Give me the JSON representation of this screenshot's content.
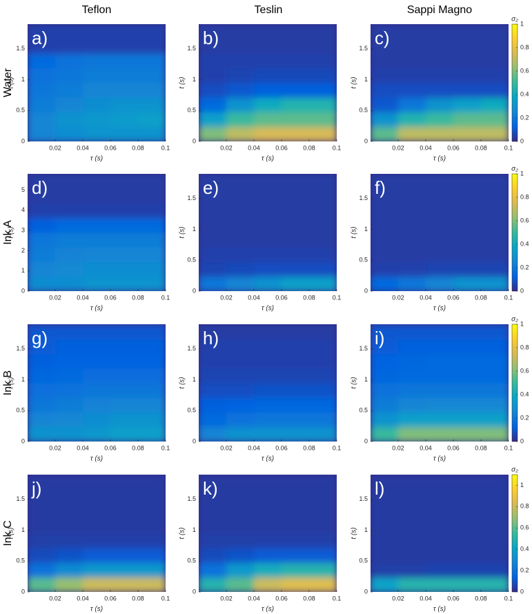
{
  "column_headers": [
    "Teflon",
    "Teslin",
    "Sappi Magno"
  ],
  "row_labels": [
    "Water",
    "Ink A",
    "Ink B",
    "Ink C"
  ],
  "chart_data": [
    {
      "type": "heatmap",
      "label": "a)",
      "xlabel": "τ (s)",
      "ylabel": "t (s)",
      "xlim": [
        0,
        0.1
      ],
      "ylim": [
        0,
        1.9
      ],
      "xticks": [
        0.02,
        0.04,
        0.06,
        0.08,
        0.1
      ],
      "yticks": [
        0,
        0.5,
        1,
        1.5
      ],
      "clim": [
        0,
        1
      ],
      "colormap": "parula",
      "values": [
        [
          0.25,
          0.28,
          0.3,
          0.3,
          0.3
        ],
        [
          0.25,
          0.3,
          0.32,
          0.33,
          0.35
        ],
        [
          0.22,
          0.25,
          0.28,
          0.3,
          0.3
        ],
        [
          0.2,
          0.22,
          0.25,
          0.25,
          0.25
        ],
        [
          0.18,
          0.2,
          0.22,
          0.22,
          0.22
        ],
        [
          0.15,
          0.18,
          0.2,
          0.2,
          0.2
        ],
        [
          0.05,
          0.05,
          0.05,
          0.05,
          0.05
        ],
        [
          0.05,
          0.05,
          0.05,
          0.05,
          0.05
        ]
      ]
    },
    {
      "type": "heatmap",
      "label": "b)",
      "xlabel": "τ (s)",
      "ylabel": "t (s)",
      "xlim": [
        0,
        0.1
      ],
      "ylim": [
        0,
        1.9
      ],
      "xticks": [
        0.02,
        0.04,
        0.06,
        0.08,
        0.1
      ],
      "yticks": [
        0,
        0.5,
        1,
        1.5
      ],
      "clim": [
        0,
        1
      ],
      "colormap": "parula",
      "values": [
        [
          0.6,
          0.7,
          0.75,
          0.75,
          0.75
        ],
        [
          0.35,
          0.5,
          0.55,
          0.55,
          0.55
        ],
        [
          0.15,
          0.3,
          0.4,
          0.45,
          0.45
        ],
        [
          0.08,
          0.1,
          0.12,
          0.12,
          0.12
        ],
        [
          0.05,
          0.06,
          0.07,
          0.07,
          0.07
        ],
        [
          0.05,
          0.05,
          0.05,
          0.05,
          0.05
        ],
        [
          0.04,
          0.04,
          0.04,
          0.04,
          0.04
        ],
        [
          0.04,
          0.04,
          0.04,
          0.04,
          0.04
        ]
      ]
    },
    {
      "type": "heatmap",
      "label": "c)",
      "xlabel": "τ (s)",
      "ylabel": "t (s)",
      "xlim": [
        0,
        0.1
      ],
      "ylim": [
        0,
        1.9
      ],
      "xticks": [
        0.02,
        0.04,
        0.06,
        0.08,
        0.1
      ],
      "yticks": [
        0,
        0.5,
        1,
        1.5
      ],
      "clim": [
        0,
        1
      ],
      "colormap": "parula",
      "values": [
        [
          0.55,
          0.7,
          0.7,
          0.7,
          0.7
        ],
        [
          0.3,
          0.45,
          0.5,
          0.55,
          0.55
        ],
        [
          0.1,
          0.2,
          0.3,
          0.35,
          0.4
        ],
        [
          0.08,
          0.08,
          0.08,
          0.08,
          0.08
        ],
        [
          0.05,
          0.05,
          0.05,
          0.05,
          0.05
        ],
        [
          0.04,
          0.04,
          0.04,
          0.04,
          0.04
        ],
        [
          0.04,
          0.04,
          0.04,
          0.04,
          0.04
        ],
        [
          0.04,
          0.04,
          0.04,
          0.04,
          0.04
        ]
      ],
      "colorbar": {
        "label": "σ₂",
        "ticks": [
          0,
          0.2,
          0.4,
          0.6,
          0.8,
          1
        ]
      }
    },
    {
      "type": "heatmap",
      "label": "d)",
      "xlabel": "τ (s)",
      "ylabel": "t (s)",
      "xlim": [
        0,
        0.1
      ],
      "ylim": [
        0,
        5.8
      ],
      "xticks": [
        0.02,
        0.04,
        0.06,
        0.08,
        0.1
      ],
      "yticks": [
        0,
        1,
        2,
        3,
        4,
        5
      ],
      "clim": [
        0,
        1
      ],
      "colormap": "parula",
      "values": [
        [
          0.28,
          0.28,
          0.3,
          0.3,
          0.3
        ],
        [
          0.25,
          0.27,
          0.28,
          0.28,
          0.28
        ],
        [
          0.22,
          0.24,
          0.25,
          0.25,
          0.25
        ],
        [
          0.2,
          0.22,
          0.22,
          0.22,
          0.22
        ],
        [
          0.12,
          0.15,
          0.15,
          0.15,
          0.15
        ],
        [
          0.05,
          0.05,
          0.05,
          0.05,
          0.05
        ],
        [
          0.04,
          0.04,
          0.04,
          0.04,
          0.04
        ],
        [
          0.04,
          0.04,
          0.04,
          0.04,
          0.04
        ]
      ]
    },
    {
      "type": "heatmap",
      "label": "e)",
      "xlabel": "τ (s)",
      "ylabel": "t (s)",
      "xlim": [
        0,
        0.1
      ],
      "ylim": [
        0,
        1.9
      ],
      "xticks": [
        0.02,
        0.04,
        0.06,
        0.08,
        0.1
      ],
      "yticks": [
        0,
        0.5,
        1,
        1.5
      ],
      "clim": [
        0,
        1
      ],
      "colormap": "parula",
      "values": [
        [
          0.2,
          0.25,
          0.3,
          0.35,
          0.35
        ],
        [
          0.06,
          0.07,
          0.08,
          0.08,
          0.08
        ],
        [
          0.05,
          0.05,
          0.05,
          0.05,
          0.05
        ],
        [
          0.04,
          0.04,
          0.04,
          0.04,
          0.04
        ],
        [
          0.04,
          0.04,
          0.04,
          0.04,
          0.04
        ],
        [
          0.04,
          0.04,
          0.04,
          0.04,
          0.04
        ],
        [
          0.04,
          0.04,
          0.04,
          0.04,
          0.04
        ],
        [
          0.04,
          0.04,
          0.04,
          0.04,
          0.04
        ]
      ]
    },
    {
      "type": "heatmap",
      "label": "f)",
      "xlabel": "τ (s)",
      "ylabel": "t (s)",
      "xlim": [
        0,
        0.1
      ],
      "ylim": [
        0,
        1.9
      ],
      "xticks": [
        0.02,
        0.04,
        0.06,
        0.08,
        0.1
      ],
      "yticks": [
        0,
        0.5,
        1,
        1.5
      ],
      "clim": [
        0,
        1
      ],
      "colormap": "parula",
      "values": [
        [
          0.15,
          0.2,
          0.25,
          0.3,
          0.3
        ],
        [
          0.05,
          0.05,
          0.06,
          0.06,
          0.06
        ],
        [
          0.04,
          0.04,
          0.04,
          0.04,
          0.04
        ],
        [
          0.04,
          0.04,
          0.04,
          0.04,
          0.04
        ],
        [
          0.04,
          0.04,
          0.04,
          0.04,
          0.04
        ],
        [
          0.04,
          0.04,
          0.04,
          0.04,
          0.04
        ],
        [
          0.04,
          0.04,
          0.04,
          0.04,
          0.04
        ],
        [
          0.04,
          0.04,
          0.04,
          0.04,
          0.04
        ]
      ],
      "colorbar": {
        "label": "σ₂",
        "ticks": [
          0,
          0.2,
          0.4,
          0.6,
          0.8,
          1
        ]
      }
    },
    {
      "type": "heatmap",
      "label": "g)",
      "xlabel": "τ (s)",
      "ylabel": "t (s)",
      "xlim": [
        0,
        0.1
      ],
      "ylim": [
        0,
        1.9
      ],
      "xticks": [
        0.02,
        0.04,
        0.06,
        0.08,
        0.1
      ],
      "yticks": [
        0,
        0.5,
        1,
        1.5
      ],
      "clim": [
        0,
        1
      ],
      "colormap": "parula",
      "values": [
        [
          0.3,
          0.3,
          0.32,
          0.35,
          0.35
        ],
        [
          0.25,
          0.26,
          0.28,
          0.3,
          0.3
        ],
        [
          0.2,
          0.22,
          0.24,
          0.25,
          0.25
        ],
        [
          0.17,
          0.18,
          0.2,
          0.2,
          0.2
        ],
        [
          0.14,
          0.15,
          0.16,
          0.16,
          0.16
        ],
        [
          0.12,
          0.13,
          0.13,
          0.13,
          0.13
        ],
        [
          0.11,
          0.12,
          0.12,
          0.12,
          0.12
        ],
        [
          0.1,
          0.1,
          0.1,
          0.1,
          0.1
        ]
      ]
    },
    {
      "type": "heatmap",
      "label": "h)",
      "xlabel": "τ (s)",
      "ylabel": "t (s)",
      "xlim": [
        0,
        0.1
      ],
      "ylim": [
        0,
        1.9
      ],
      "xticks": [
        0.02,
        0.04,
        0.06,
        0.08,
        0.1
      ],
      "yticks": [
        0,
        0.5,
        1,
        1.5
      ],
      "clim": [
        0,
        1
      ],
      "colormap": "parula",
      "values": [
        [
          0.25,
          0.3,
          0.3,
          0.3,
          0.3
        ],
        [
          0.15,
          0.18,
          0.2,
          0.2,
          0.2
        ],
        [
          0.12,
          0.13,
          0.14,
          0.14,
          0.14
        ],
        [
          0.08,
          0.08,
          0.09,
          0.09,
          0.09
        ],
        [
          0.06,
          0.06,
          0.06,
          0.06,
          0.06
        ],
        [
          0.05,
          0.05,
          0.05,
          0.05,
          0.05
        ],
        [
          0.05,
          0.05,
          0.05,
          0.05,
          0.05
        ],
        [
          0.04,
          0.04,
          0.04,
          0.04,
          0.04
        ]
      ]
    },
    {
      "type": "heatmap",
      "label": "i)",
      "xlabel": "τ (s)",
      "ylabel": "t (s)",
      "xlim": [
        0,
        0.1
      ],
      "ylim": [
        0,
        1.9
      ],
      "xticks": [
        0.02,
        0.04,
        0.06,
        0.08,
        0.1
      ],
      "yticks": [
        0,
        0.5,
        1,
        1.5
      ],
      "clim": [
        0,
        1
      ],
      "colormap": "parula",
      "values": [
        [
          0.5,
          0.6,
          0.6,
          0.6,
          0.6
        ],
        [
          0.3,
          0.35,
          0.35,
          0.35,
          0.35
        ],
        [
          0.22,
          0.25,
          0.26,
          0.26,
          0.26
        ],
        [
          0.18,
          0.2,
          0.2,
          0.2,
          0.2
        ],
        [
          0.14,
          0.15,
          0.15,
          0.15,
          0.15
        ],
        [
          0.13,
          0.14,
          0.15,
          0.15,
          0.15
        ],
        [
          0.11,
          0.12,
          0.12,
          0.12,
          0.12
        ],
        [
          0.1,
          0.1,
          0.1,
          0.1,
          0.1
        ]
      ],
      "colorbar": {
        "label": "σ₂",
        "ticks": [
          0,
          0.2,
          0.4,
          0.6,
          0.8,
          1
        ]
      }
    },
    {
      "type": "heatmap",
      "label": "j)",
      "xlabel": "τ (s)",
      "ylabel": "t (s)",
      "xlim": [
        0,
        0.1
      ],
      "ylim": [
        0,
        1.9
      ],
      "xticks": [
        0.02,
        0.04,
        0.06,
        0.08,
        0.1
      ],
      "yticks": [
        0,
        0.5,
        1,
        1.5
      ],
      "clim": [
        0,
        1.1
      ],
      "colormap": "parula",
      "values": [
        [
          0.6,
          0.7,
          0.8,
          0.8,
          0.8
        ],
        [
          0.2,
          0.3,
          0.35,
          0.35,
          0.35
        ],
        [
          0.08,
          0.1,
          0.12,
          0.12,
          0.12
        ],
        [
          0.05,
          0.05,
          0.05,
          0.05,
          0.05
        ],
        [
          0.04,
          0.04,
          0.04,
          0.04,
          0.04
        ],
        [
          0.04,
          0.04,
          0.04,
          0.04,
          0.04
        ],
        [
          0.04,
          0.04,
          0.04,
          0.04,
          0.04
        ],
        [
          0.04,
          0.04,
          0.04,
          0.04,
          0.04
        ]
      ]
    },
    {
      "type": "heatmap",
      "label": "k)",
      "xlabel": "τ (s)",
      "ylabel": "t (s)",
      "xlim": [
        0,
        0.1
      ],
      "ylim": [
        0,
        1.9
      ],
      "xticks": [
        0.02,
        0.04,
        0.06,
        0.08,
        0.1
      ],
      "yticks": [
        0,
        0.5,
        1,
        1.5
      ],
      "clim": [
        0,
        1.1
      ],
      "colormap": "parula",
      "values": [
        [
          0.5,
          0.6,
          0.8,
          0.85,
          0.85
        ],
        [
          0.2,
          0.35,
          0.45,
          0.5,
          0.5
        ],
        [
          0.08,
          0.1,
          0.12,
          0.12,
          0.12
        ],
        [
          0.05,
          0.05,
          0.05,
          0.05,
          0.05
        ],
        [
          0.04,
          0.04,
          0.04,
          0.04,
          0.04
        ],
        [
          0.04,
          0.04,
          0.04,
          0.04,
          0.04
        ],
        [
          0.04,
          0.04,
          0.04,
          0.04,
          0.04
        ],
        [
          0.04,
          0.04,
          0.04,
          0.04,
          0.04
        ]
      ]
    },
    {
      "type": "heatmap",
      "label": "l)",
      "xlabel": "τ (s)",
      "ylabel": "t (s)",
      "xlim": [
        0,
        0.1
      ],
      "ylim": [
        0,
        1.9
      ],
      "xticks": [
        0.02,
        0.04,
        0.06,
        0.08,
        0.1
      ],
      "yticks": [
        0,
        0.5,
        1,
        1.5
      ],
      "clim": [
        0,
        1.1
      ],
      "colormap": "parula",
      "values": [
        [
          0.4,
          0.5,
          0.5,
          0.5,
          0.5
        ],
        [
          0.05,
          0.05,
          0.06,
          0.06,
          0.06
        ],
        [
          0.04,
          0.04,
          0.04,
          0.04,
          0.04
        ],
        [
          0.04,
          0.04,
          0.04,
          0.04,
          0.04
        ],
        [
          0.04,
          0.04,
          0.04,
          0.04,
          0.04
        ],
        [
          0.04,
          0.04,
          0.04,
          0.04,
          0.04
        ],
        [
          0.04,
          0.04,
          0.04,
          0.04,
          0.04
        ],
        [
          0.04,
          0.04,
          0.04,
          0.04,
          0.04
        ]
      ],
      "colorbar": {
        "label": "σ₂",
        "ticks": [
          0,
          0.2,
          0.4,
          0.6,
          0.8,
          1
        ]
      }
    }
  ]
}
